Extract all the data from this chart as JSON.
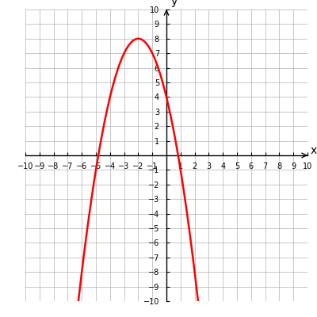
{
  "equation": "-x**2 - 4*x + 4",
  "x_min": -10,
  "x_max": 10,
  "y_min": -10,
  "y_max": 10,
  "curve_color": "#ff0000",
  "curve_linewidth": 1.8,
  "grid_color": "#b0b0b0",
  "axis_color": "#000000",
  "background_color": "#ffffff",
  "xlabel": "x",
  "ylabel": "y",
  "label_fontsize": 10,
  "tick_fontsize": 7
}
